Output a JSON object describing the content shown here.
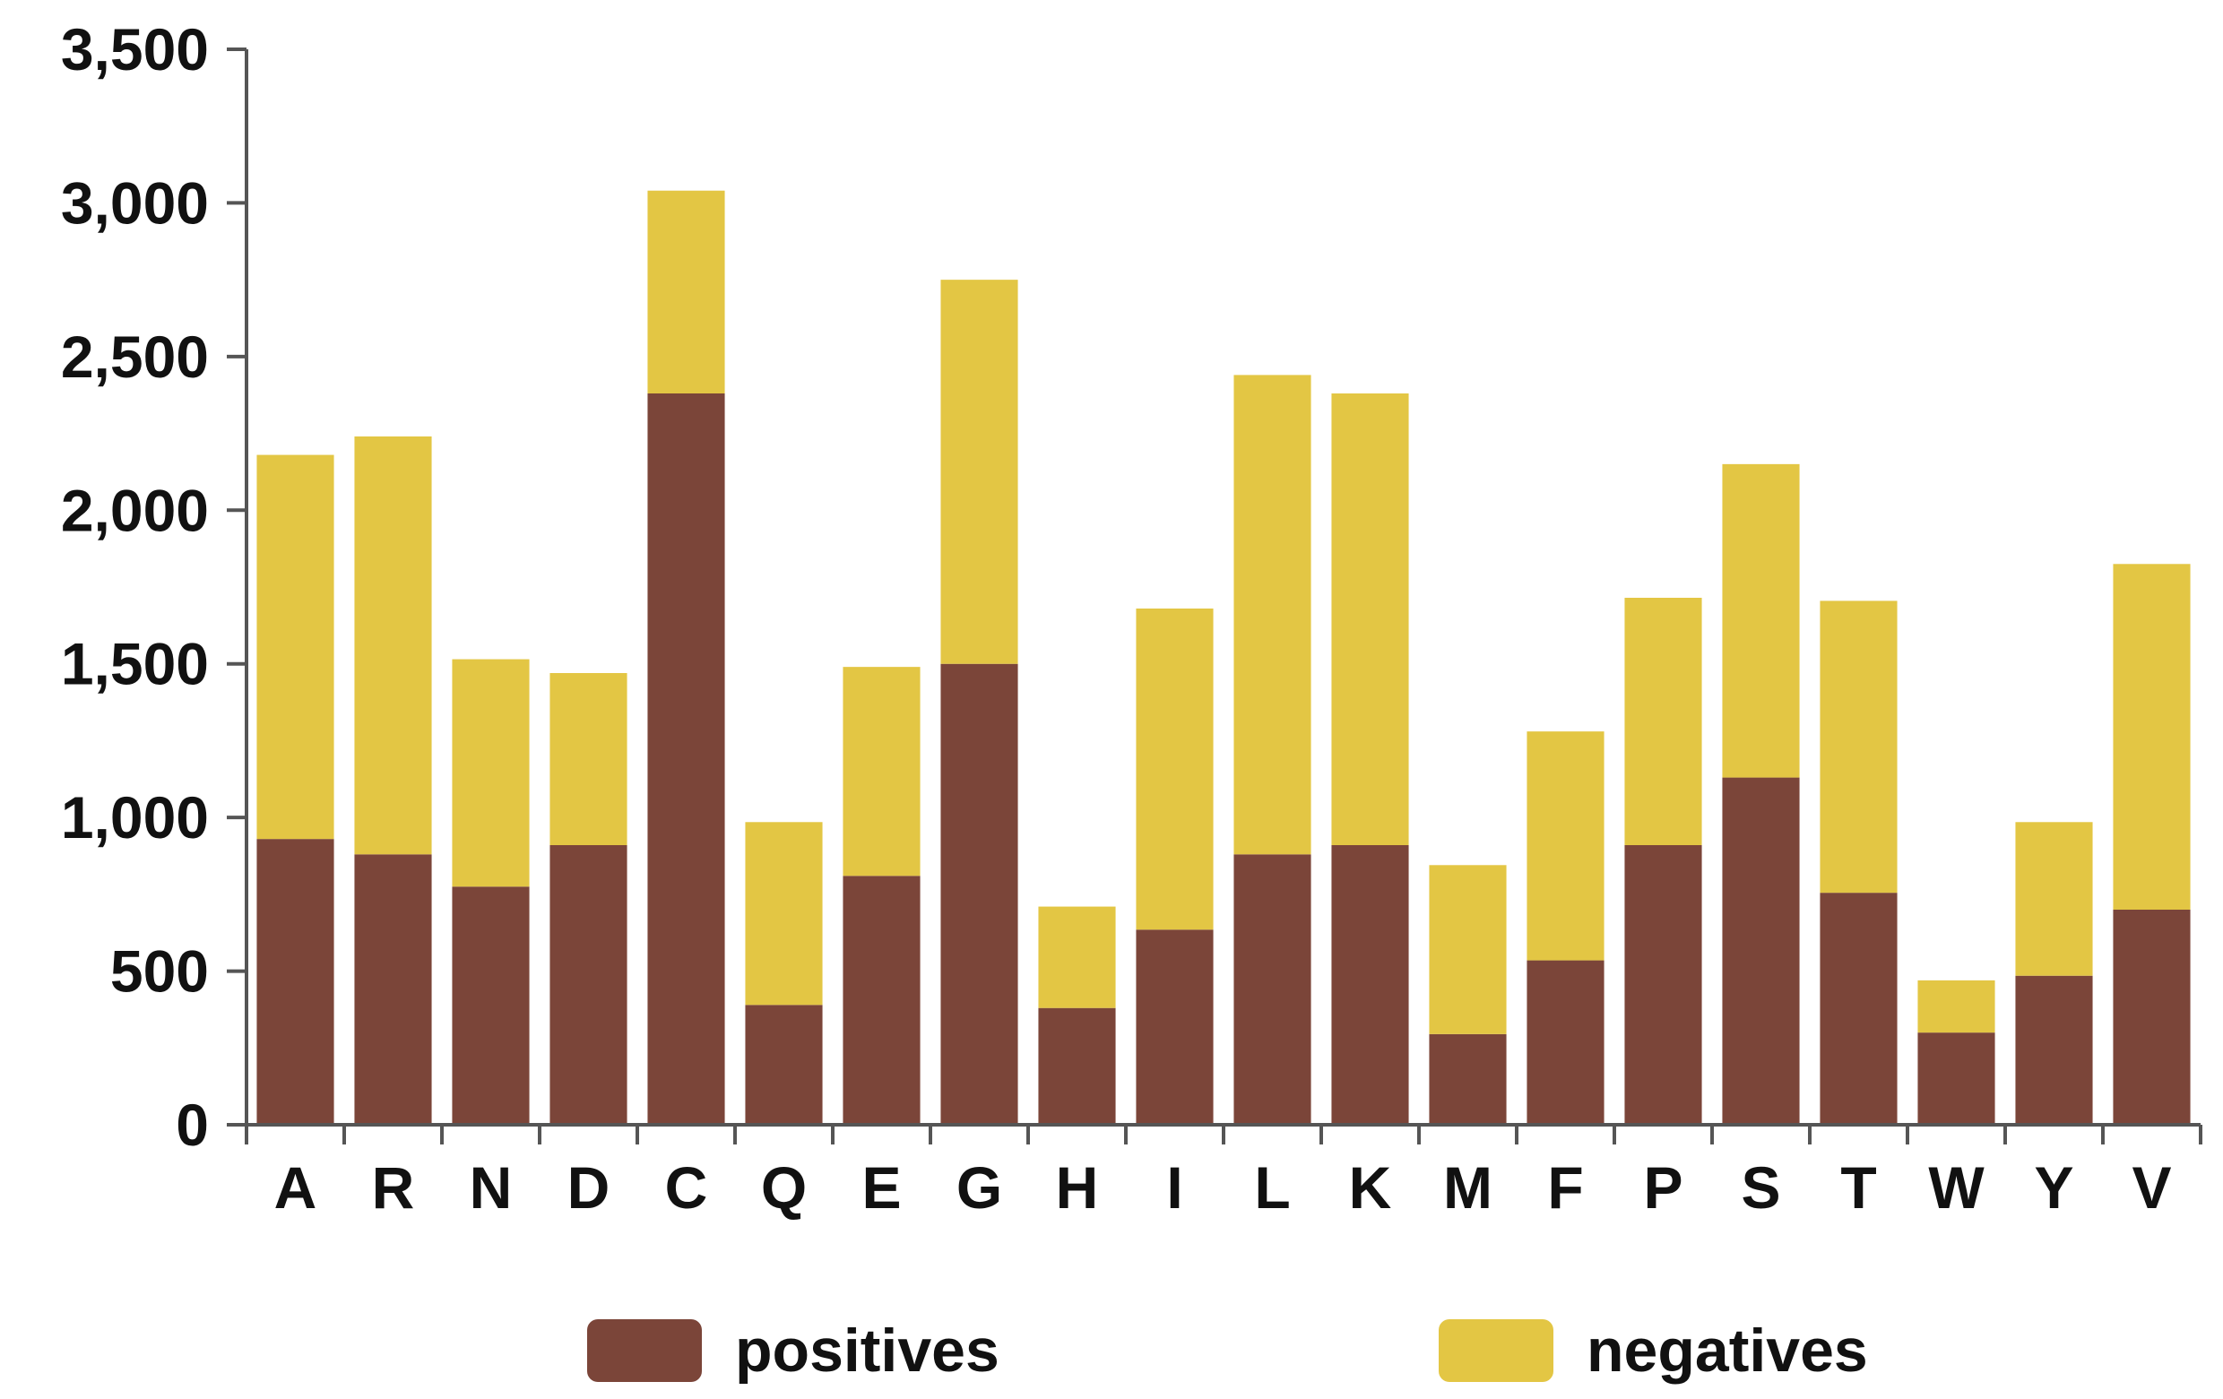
{
  "chart_data": {
    "type": "bar",
    "stacked": true,
    "categories": [
      "A",
      "R",
      "N",
      "D",
      "C",
      "Q",
      "E",
      "G",
      "H",
      "I",
      "L",
      "K",
      "M",
      "F",
      "P",
      "S",
      "T",
      "W",
      "Y",
      "V"
    ],
    "series": [
      {
        "name": "positives",
        "color": "#7b4539",
        "values": [
          930,
          880,
          775,
          910,
          2380,
          390,
          810,
          1500,
          380,
          635,
          880,
          910,
          295,
          535,
          910,
          1130,
          755,
          300,
          485,
          700
        ]
      },
      {
        "name": "negatives",
        "color": "#e3c644",
        "values": [
          1250,
          1360,
          740,
          560,
          660,
          595,
          680,
          1250,
          330,
          1045,
          1560,
          1470,
          550,
          745,
          805,
          1020,
          950,
          170,
          500,
          1125
        ]
      }
    ],
    "y_ticks": [
      "0",
      "500",
      "1,000",
      "1,500",
      "2,000",
      "2,500",
      "3,000",
      "3,500"
    ],
    "ylim": [
      0,
      3500
    ],
    "legend_position": "bottom",
    "grid": false
  }
}
